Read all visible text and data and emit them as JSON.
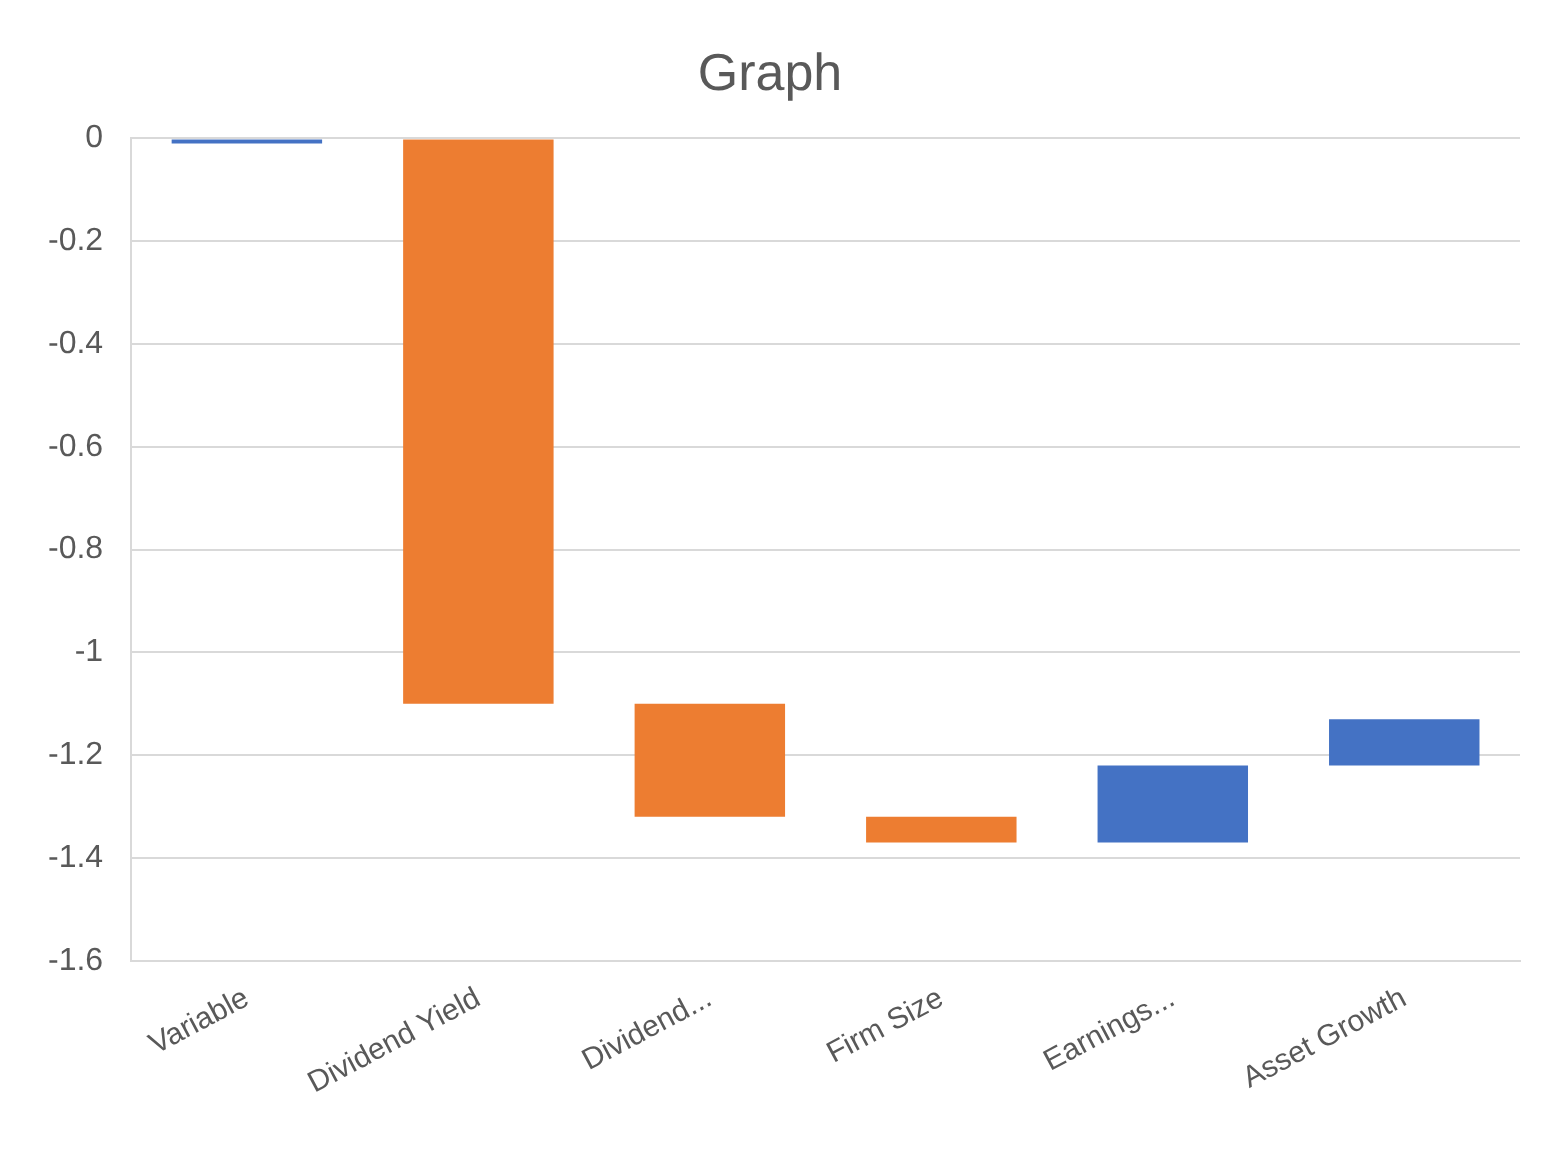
{
  "chart_data": {
    "type": "bar",
    "title": "Graph",
    "categories": [
      "Variable",
      "Dividend Yield",
      "Dividend...",
      "Firm Size",
      "Earnings...",
      "Asset Growth"
    ],
    "base": [
      0,
      0,
      -1.1,
      -1.32,
      -1.37,
      -1.22
    ],
    "values": [
      -0.01,
      -1.1,
      -0.22,
      -0.05,
      0.15,
      0.09
    ],
    "colors": [
      "#4472c4",
      "#ed7d31",
      "#ed7d31",
      "#ed7d31",
      "#4472c4",
      "#4472c4"
    ],
    "ylim": [
      -1.6,
      0
    ],
    "yticks": [
      0,
      -0.2,
      -0.4,
      -0.6,
      -0.8,
      -1,
      -1.2,
      -1.4,
      -1.6
    ],
    "grid": "y"
  }
}
